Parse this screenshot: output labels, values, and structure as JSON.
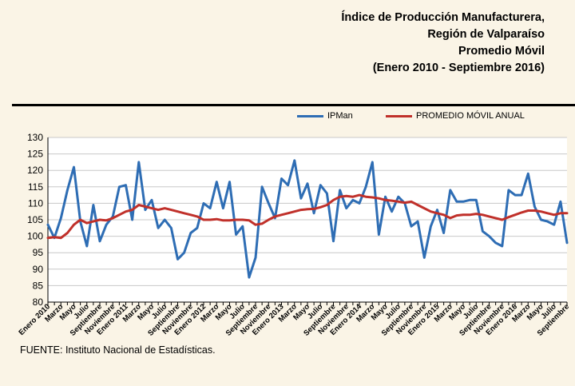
{
  "title": {
    "line1": "Índice de Producción Manufacturera,",
    "line2": "Región de Valparaíso",
    "line3": "Promedio Móvil",
    "line4": "(Enero 2010 - Septiembre 2016)"
  },
  "source": "FUENTE: Instituto Nacional  de Estadísticas.",
  "colors": {
    "background": "#FAF4E6",
    "ipman": "#2E6DB4",
    "promedio": "#C0302A",
    "grid": "#C8C8C8"
  },
  "chart_data": {
    "type": "line",
    "ylim": [
      80,
      130
    ],
    "yticks": [
      80,
      85,
      90,
      95,
      100,
      105,
      110,
      115,
      120,
      125,
      130
    ],
    "legend_position": "top",
    "grid": true,
    "categories": [
      "Ene 2010",
      "Feb 2010",
      "Mar 2010",
      "Abr 2010",
      "May 2010",
      "Jun 2010",
      "Jul 2010",
      "Ago 2010",
      "Sep 2010",
      "Oct 2010",
      "Nov 2010",
      "Dic 2010",
      "Ene 2011",
      "Feb 2011",
      "Mar 2011",
      "Abr 2011",
      "May 2011",
      "Jun 2011",
      "Jul 2011",
      "Ago 2011",
      "Sep 2011",
      "Oct 2011",
      "Nov 2011",
      "Dic 2011",
      "Ene 2012",
      "Feb 2012",
      "Mar 2012",
      "Abr 2012",
      "May 2012",
      "Jun 2012",
      "Jul 2012",
      "Ago 2012",
      "Sep 2012",
      "Oct 2012",
      "Nov 2012",
      "Dic 2012",
      "Ene 2013",
      "Feb 2013",
      "Mar 2013",
      "Abr 2013",
      "May 2013",
      "Jun 2013",
      "Jul 2013",
      "Ago 2013",
      "Sep 2013",
      "Oct 2013",
      "Nov 2013",
      "Dic 2013",
      "Ene 2014",
      "Feb 2014",
      "Mar 2014",
      "Abr 2014",
      "May 2014",
      "Jun 2014",
      "Jul 2014",
      "Ago 2014",
      "Sep 2014",
      "Oct 2014",
      "Nov 2014",
      "Dic 2014",
      "Ene 2015",
      "Feb 2015",
      "Mar 2015",
      "Abr 2015",
      "May 2015",
      "Jun 2015",
      "Jul 2015",
      "Ago 2015",
      "Sep 2015",
      "Oct 2015",
      "Nov 2015",
      "Dic 2015",
      "Ene 2016",
      "Feb 2016",
      "Mar 2016",
      "Abr 2016",
      "May 2016",
      "Jun 2016",
      "Jul 2016",
      "Ago 2016",
      "Sep 2016"
    ],
    "tick_labels": [
      {
        "index": 0,
        "label": "Enero 2010"
      },
      {
        "index": 2,
        "label": "Marzo"
      },
      {
        "index": 4,
        "label": "Mayo"
      },
      {
        "index": 6,
        "label": "Julio"
      },
      {
        "index": 8,
        "label": "Septiembre"
      },
      {
        "index": 10,
        "label": "Noviembre"
      },
      {
        "index": 12,
        "label": "Enero 2011"
      },
      {
        "index": 14,
        "label": "Marzo"
      },
      {
        "index": 16,
        "label": "Mayo"
      },
      {
        "index": 18,
        "label": "Julio"
      },
      {
        "index": 20,
        "label": "Septiembre"
      },
      {
        "index": 22,
        "label": "Noviembre"
      },
      {
        "index": 24,
        "label": "Enero 2012"
      },
      {
        "index": 26,
        "label": "Marzo"
      },
      {
        "index": 28,
        "label": "Mayo"
      },
      {
        "index": 30,
        "label": "Julio"
      },
      {
        "index": 32,
        "label": "Septiembre"
      },
      {
        "index": 34,
        "label": "Noviembre"
      },
      {
        "index": 36,
        "label": "Enero 2013"
      },
      {
        "index": 38,
        "label": "Marzo"
      },
      {
        "index": 40,
        "label": "Mayo"
      },
      {
        "index": 42,
        "label": "Julio"
      },
      {
        "index": 44,
        "label": "Septiembre"
      },
      {
        "index": 46,
        "label": "Noviembre"
      },
      {
        "index": 48,
        "label": "Enero 2014"
      },
      {
        "index": 50,
        "label": "Marzo"
      },
      {
        "index": 52,
        "label": "Mayo"
      },
      {
        "index": 54,
        "label": "Julio"
      },
      {
        "index": 56,
        "label": "Septiembre"
      },
      {
        "index": 58,
        "label": "Noviembre"
      },
      {
        "index": 60,
        "label": "Enero 2015"
      },
      {
        "index": 62,
        "label": "Marzo"
      },
      {
        "index": 64,
        "label": "Mayo"
      },
      {
        "index": 66,
        "label": "Julio"
      },
      {
        "index": 68,
        "label": "Septiembre"
      },
      {
        "index": 70,
        "label": "Noviembre"
      },
      {
        "index": 72,
        "label": "Enero 2016"
      },
      {
        "index": 74,
        "label": "Marzo"
      },
      {
        "index": 76,
        "label": "Mayo"
      },
      {
        "index": 78,
        "label": "Julio"
      },
      {
        "index": 80,
        "label": "Septiembre"
      }
    ],
    "series": [
      {
        "name": "IPMan",
        "color": "#2E6DB4",
        "values": [
          103.5,
          99.5,
          105.5,
          114,
          121,
          104.5,
          97,
          109.5,
          98.5,
          103.5,
          106,
          115,
          115.5,
          105,
          122.5,
          108,
          111,
          102.5,
          105,
          102.5,
          93,
          95,
          101,
          102.5,
          110,
          108.5,
          116.5,
          108.5,
          116.5,
          100.5,
          103,
          87.5,
          93.5,
          115,
          110,
          105.5,
          117.5,
          115.5,
          123,
          111.5,
          116,
          107,
          115.5,
          113,
          98.5,
          114,
          108.5,
          111,
          110,
          115,
          122.5,
          100.5,
          112,
          107.5,
          112,
          110,
          103,
          104.5,
          93.5,
          103,
          108,
          101,
          114,
          110.5,
          110.5,
          111,
          111,
          101.5,
          100,
          98,
          97,
          114,
          112.5,
          112.5,
          119,
          109,
          105,
          104.5,
          103.5,
          110.5,
          98
        ]
      },
      {
        "name": "PROMEDIO MÓVIL ANUAL",
        "color": "#C0302A",
        "values": [
          99.5,
          99.7,
          99.5,
          101,
          103.5,
          105,
          104,
          104.5,
          105,
          104.8,
          105.5,
          106.5,
          107.5,
          108,
          109.5,
          109,
          108.5,
          108,
          108.5,
          108,
          107.5,
          107,
          106.5,
          106,
          105,
          105,
          105.2,
          104.8,
          104.8,
          105,
          105,
          104.8,
          103.5,
          103.8,
          105,
          106,
          106.5,
          107,
          107.5,
          108,
          108.2,
          108.3,
          108.8,
          109.5,
          111,
          112,
          112.2,
          112,
          112.5,
          112,
          111.8,
          111.5,
          111,
          110.8,
          110.5,
          110.2,
          110.5,
          109.5,
          108.5,
          107.5,
          107,
          106.5,
          105.5,
          106.3,
          106.5,
          106.5,
          106.8,
          106.5,
          106,
          105.5,
          105,
          105.8,
          106.5,
          107.2,
          107.8,
          107.8,
          107.5,
          107,
          106.5,
          107,
          107
        ]
      }
    ]
  }
}
